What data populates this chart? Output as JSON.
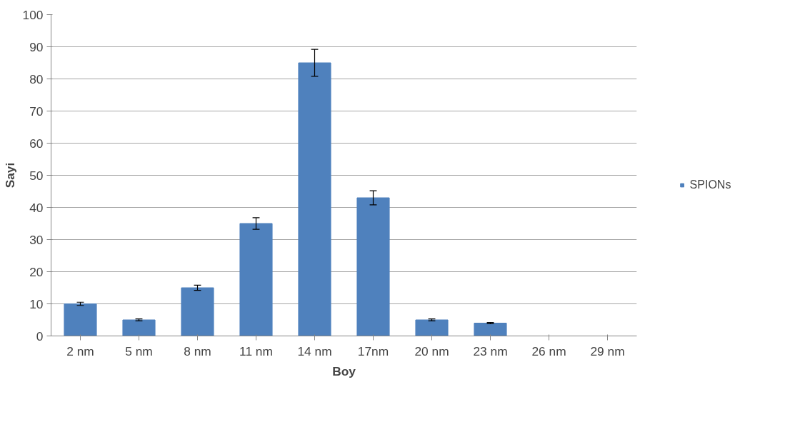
{
  "chart_data": {
    "type": "bar",
    "xlabel": "Boy",
    "ylabel": "Sayi",
    "categories": [
      "2 nm",
      "5 nm",
      "8 nm",
      "11 nm",
      "14 nm",
      "17nm",
      "20 nm",
      "23 nm",
      "26 nm",
      "29 nm"
    ],
    "series": [
      {
        "name": "SPIONs",
        "color": "#4f81bd",
        "values": [
          10,
          5,
          15,
          35,
          85,
          43,
          5,
          4,
          0,
          0
        ],
        "errors": [
          0.5,
          0.3,
          0.8,
          1.8,
          4.2,
          2.2,
          0.3,
          0.2,
          null,
          null
        ]
      }
    ],
    "ylim": [
      0,
      100
    ],
    "yticks": [
      0,
      10,
      20,
      30,
      40,
      50,
      60,
      70,
      80,
      90,
      100
    ],
    "grid": "y",
    "legend": "right"
  }
}
